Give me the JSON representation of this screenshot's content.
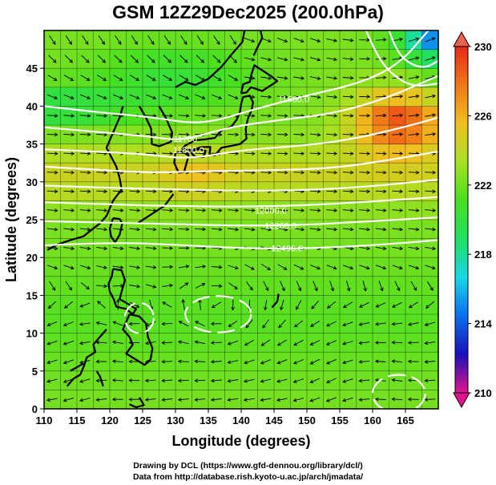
{
  "title": "GSM 12Z29Dec2025 (200.0hPa)",
  "map": {
    "xlabel": "Longitude (degrees)",
    "ylabel": "Latitude  (degrees)",
    "lon_range": [
      110,
      170
    ],
    "lat_range": [
      0,
      50
    ],
    "lon_ticks": [
      "110",
      "115",
      "120",
      "125",
      "130",
      "135",
      "140",
      "145",
      "150",
      "155",
      "160",
      "165"
    ],
    "lat_ticks": [
      "0",
      "5",
      "10",
      "15",
      "20",
      "25",
      "30",
      "35",
      "40",
      "45"
    ],
    "colorbar": {
      "ticks": [
        "230",
        "226",
        "222",
        "218",
        "214",
        "210"
      ],
      "range": [
        210,
        230
      ],
      "colors": [
        "#e0158c",
        "#1a0fb8",
        "#0a6ef0",
        "#18d8e8",
        "#20e060",
        "#48e020",
        "#a8e020",
        "#f0c020",
        "#f07818",
        "#e82818"
      ]
    },
    "contour_labels": [
      {
        "text": "11600.0",
        "lon": 148,
        "lat": 40.5
      },
      {
        "text": "11700",
        "lon": 131.5,
        "lat": 35.3
      },
      {
        "text": "11800.0",
        "lon": 132,
        "lat": 33.8
      },
      {
        "text": "12000.0",
        "lon": 144.5,
        "lat": 25.8
      },
      {
        "text": "12200.0",
        "lon": 146,
        "lat": 23.8
      },
      {
        "text": "12400.0",
        "lon": 147,
        "lat": 20.8
      }
    ],
    "contour_color": "#ffffff",
    "vector_color": "#000000"
  },
  "credits": {
    "line1": "Drawing by DCL (https://www.gfd-dennou.org/library/dcl/)",
    "line2": "Data from http://database.rish.kyoto-u.ac.jp/arch/jmadata/"
  }
}
